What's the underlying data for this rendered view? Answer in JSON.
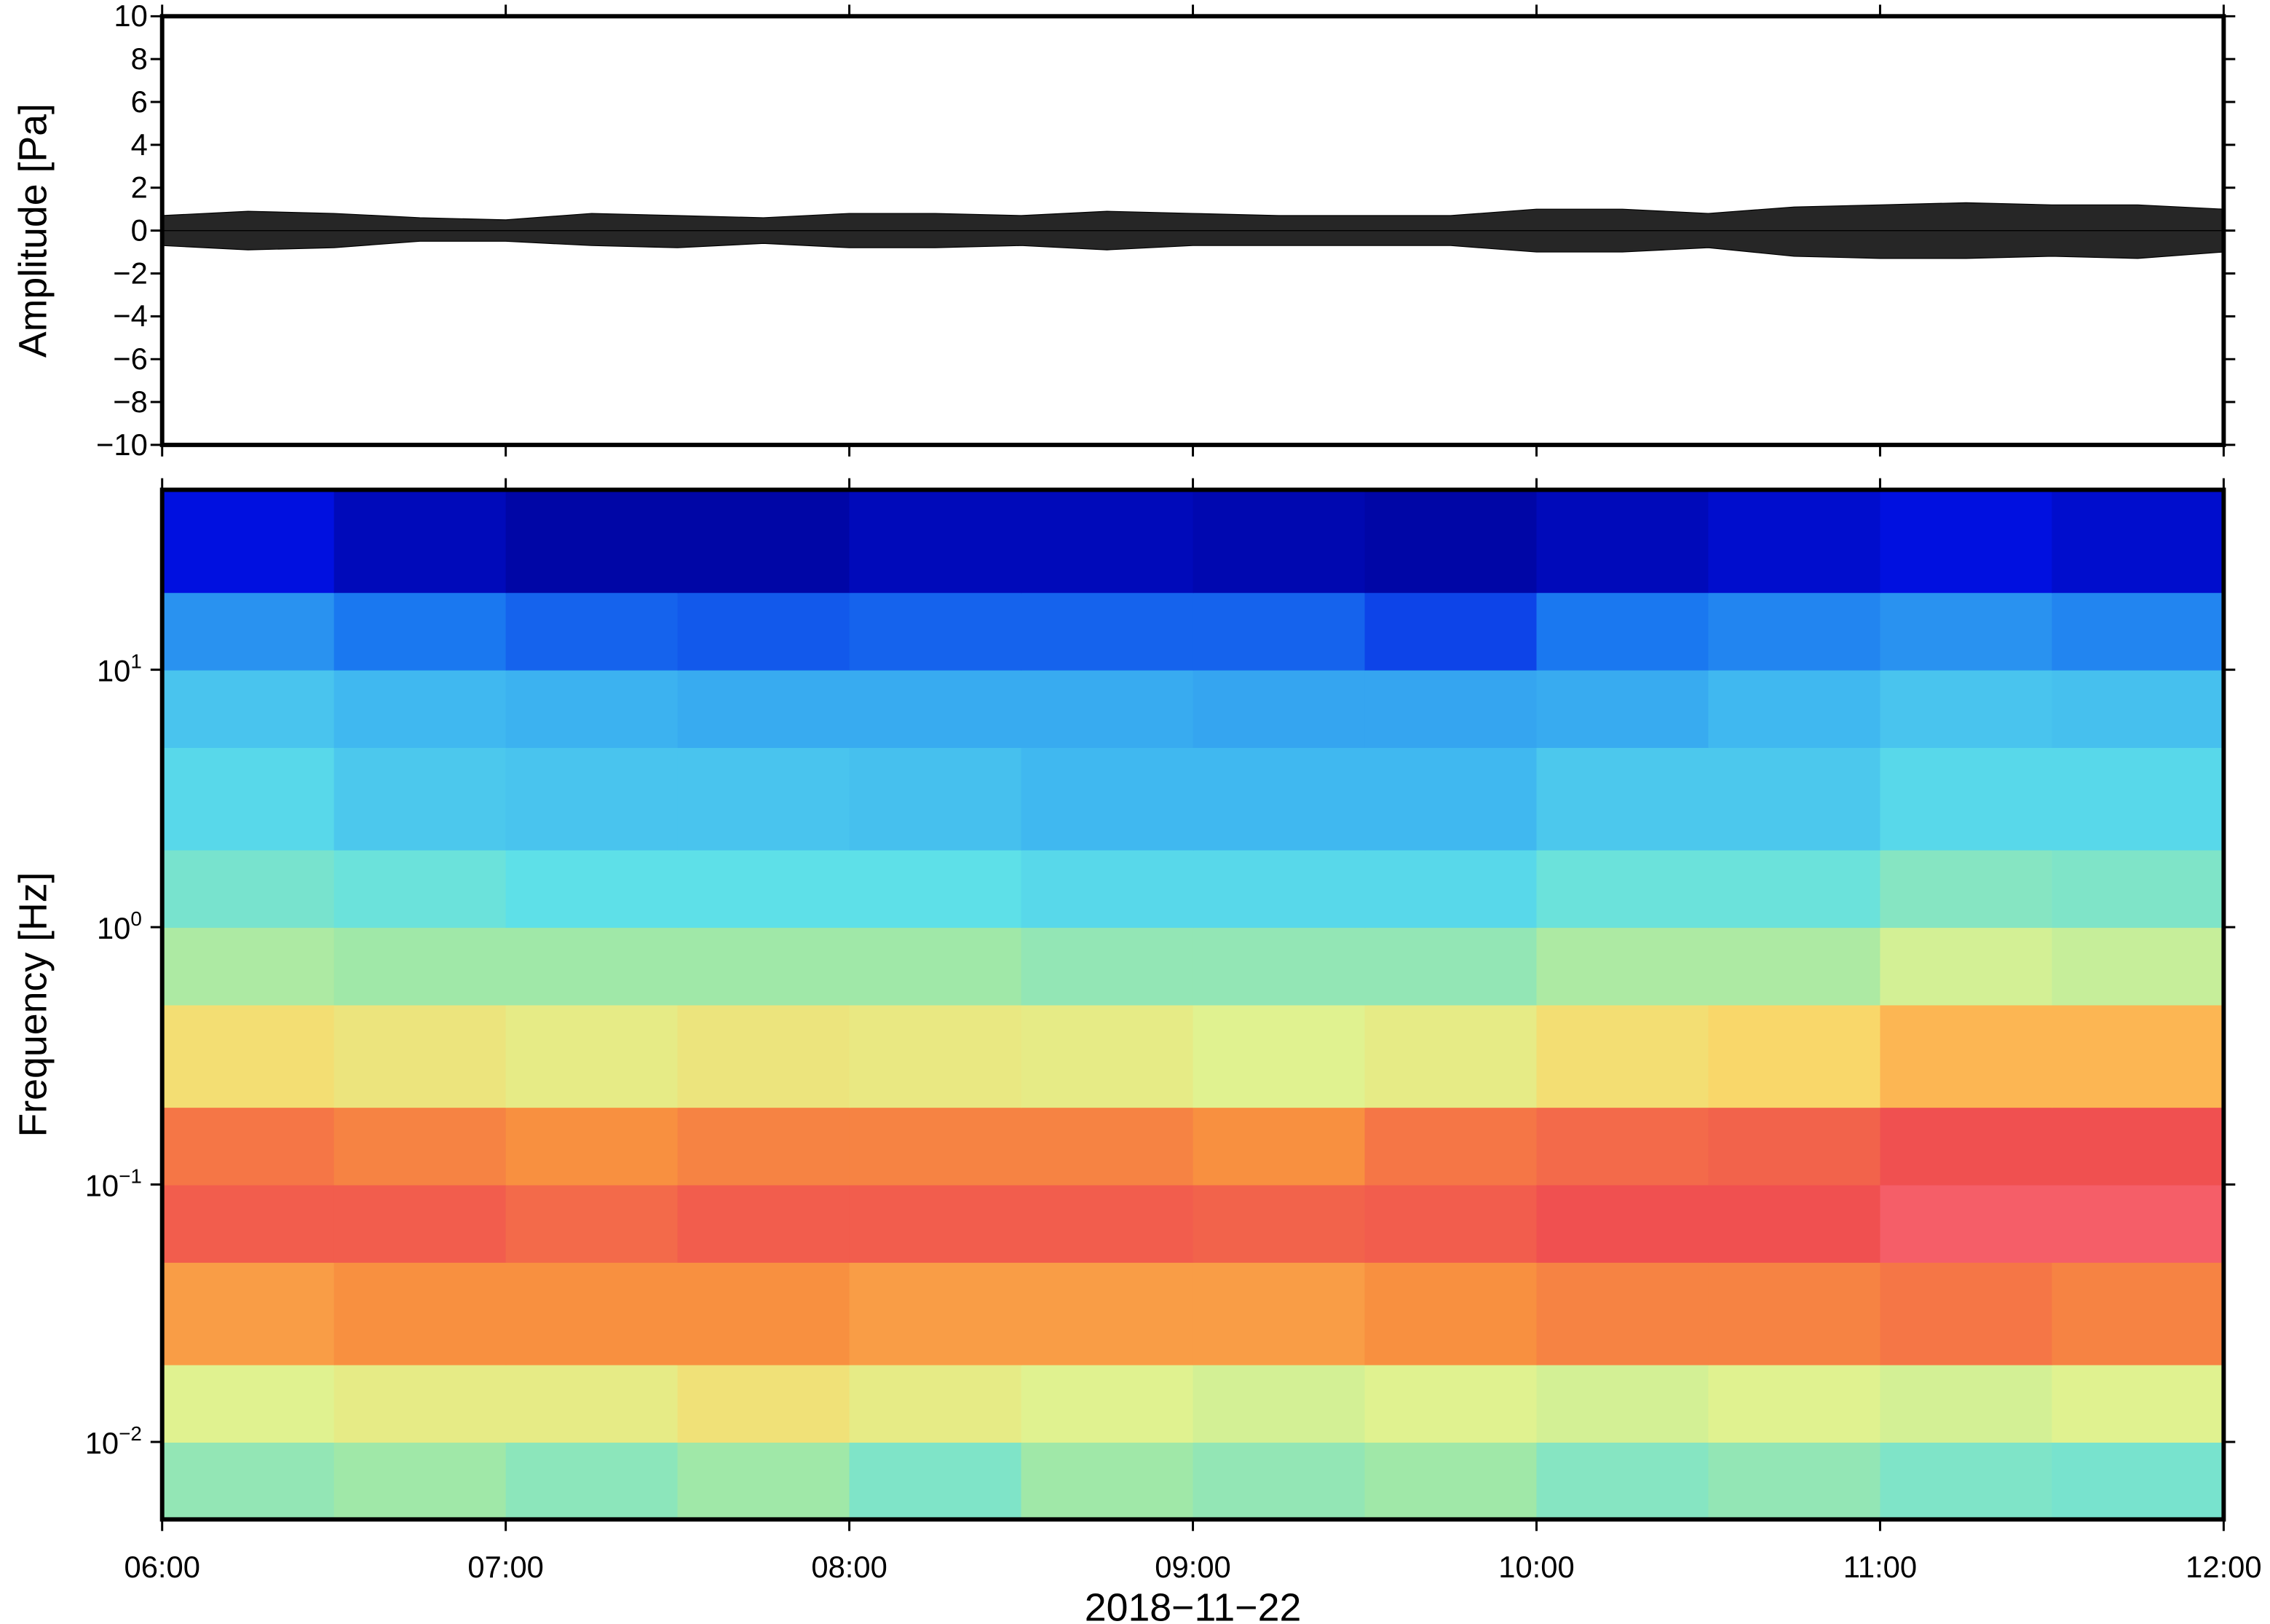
{
  "chart_data": [
    {
      "type": "line",
      "ylabel": "Amplitude [Pa]",
      "x": [
        6,
        6.25,
        6.5,
        6.75,
        7,
        7.25,
        7.5,
        7.75,
        8,
        8.25,
        8.5,
        8.75,
        9,
        9.25,
        9.5,
        9.75,
        10,
        10.25,
        10.5,
        10.75,
        11,
        11.25,
        11.5,
        11.75,
        12
      ],
      "series": [
        {
          "color": "#000000",
          "values": [
            0.7,
            0.9,
            0.8,
            0.6,
            0.5,
            0.8,
            0.7,
            0.6,
            0.8,
            0.8,
            0.7,
            0.9,
            0.8,
            0.7,
            0.7,
            0.7,
            1.0,
            1.0,
            0.8,
            1.1,
            1.2,
            1.3,
            1.2,
            1.2,
            1.0
          ]
        },
        {
          "color": "#000000",
          "values": [
            -0.7,
            -0.9,
            -0.8,
            -0.5,
            -0.5,
            -0.7,
            -0.8,
            -0.6,
            -0.8,
            -0.8,
            -0.7,
            -0.9,
            -0.7,
            -0.7,
            -0.7,
            -0.7,
            -1.0,
            -1.0,
            -0.8,
            -1.2,
            -1.3,
            -1.3,
            -1.2,
            -1.3,
            -1.0
          ]
        }
      ],
      "xlim": [
        6,
        12
      ],
      "xticks": [
        6,
        7,
        8,
        9,
        10,
        11,
        12
      ],
      "ylim": [
        -10,
        10
      ],
      "yticks": [
        {
          "value": -10,
          "label": "−10"
        },
        {
          "value": -8,
          "label": "−8"
        },
        {
          "value": -6,
          "label": "−6"
        },
        {
          "value": -4,
          "label": "−4"
        },
        {
          "value": -2,
          "label": "−2"
        },
        0,
        2,
        4,
        6,
        8,
        10
      ]
    },
    {
      "type": "heatmap",
      "ylabel": "Frequency [Hz]",
      "xlabel": "2018−11−22",
      "log_y": true,
      "x_edges": [
        6,
        6.5,
        7,
        7.5,
        8,
        8.5,
        9,
        9.5,
        10,
        10.5,
        11,
        11.5,
        12
      ],
      "y_edges": [
        0.005,
        0.01,
        0.02,
        0.05,
        0.1,
        0.2,
        0.5,
        1,
        2,
        5,
        10,
        20,
        50
      ],
      "z": [
        [
          0.48,
          0.5,
          0.47,
          0.5,
          0.45,
          0.5,
          0.48,
          0.5,
          0.46,
          0.48,
          0.45,
          0.44
        ],
        [
          0.6,
          0.62,
          0.62,
          0.65,
          0.62,
          0.6,
          0.58,
          0.6,
          0.58,
          0.6,
          0.58,
          0.6
        ],
        [
          0.78,
          0.8,
          0.8,
          0.8,
          0.78,
          0.78,
          0.78,
          0.8,
          0.82,
          0.82,
          0.84,
          0.82
        ],
        [
          0.88,
          0.88,
          0.86,
          0.88,
          0.88,
          0.88,
          0.87,
          0.88,
          0.9,
          0.9,
          0.93,
          0.93
        ],
        [
          0.84,
          0.82,
          0.8,
          0.82,
          0.82,
          0.82,
          0.8,
          0.84,
          0.86,
          0.87,
          0.9,
          0.9
        ],
        [
          0.66,
          0.64,
          0.62,
          0.64,
          0.63,
          0.62,
          0.6,
          0.62,
          0.66,
          0.68,
          0.74,
          0.74
        ],
        [
          0.52,
          0.5,
          0.5,
          0.5,
          0.5,
          0.48,
          0.48,
          0.48,
          0.52,
          0.52,
          0.58,
          0.56
        ],
        [
          0.44,
          0.42,
          0.4,
          0.4,
          0.4,
          0.38,
          0.38,
          0.38,
          0.42,
          0.42,
          0.46,
          0.45
        ],
        [
          0.38,
          0.34,
          0.33,
          0.33,
          0.32,
          0.3,
          0.3,
          0.3,
          0.34,
          0.34,
          0.38,
          0.38
        ],
        [
          0.33,
          0.3,
          0.29,
          0.28,
          0.28,
          0.28,
          0.27,
          0.27,
          0.28,
          0.3,
          0.33,
          0.32
        ],
        [
          0.24,
          0.2,
          0.18,
          0.17,
          0.18,
          0.18,
          0.18,
          0.15,
          0.2,
          0.22,
          0.24,
          0.22
        ],
        [
          0.1,
          0.06,
          0.04,
          0.04,
          0.06,
          0.06,
          0.05,
          0.04,
          0.06,
          0.08,
          0.1,
          0.08
        ]
      ],
      "zlim": [
        0,
        1
      ],
      "colormap": [
        "#000080",
        "#0010e0",
        "#1a78f0",
        "#40b8f0",
        "#5ee0e8",
        "#a0e8a8",
        "#e0f290",
        "#ffd060",
        "#f89040",
        "#f05050",
        "#ff80a0"
      ],
      "xlim": [
        6,
        12
      ],
      "xticks": [
        {
          "value": 6,
          "label": "06:00"
        },
        {
          "value": 7,
          "label": "07:00"
        },
        {
          "value": 8,
          "label": "08:00"
        },
        {
          "value": 9,
          "label": "09:00"
        },
        {
          "value": 10,
          "label": "10:00"
        },
        {
          "value": 11,
          "label": "11:00"
        },
        {
          "value": 12,
          "label": "12:00"
        }
      ],
      "ylim": [
        0.005,
        50
      ],
      "yticks": [
        {
          "value": 0.01,
          "label": "10",
          "exponent": "−2"
        },
        {
          "value": 0.1,
          "label": "10",
          "exponent": "−1"
        },
        {
          "value": 1,
          "label": "10",
          "exponent": "0"
        },
        {
          "value": 10,
          "label": "10",
          "exponent": "1"
        }
      ]
    }
  ]
}
